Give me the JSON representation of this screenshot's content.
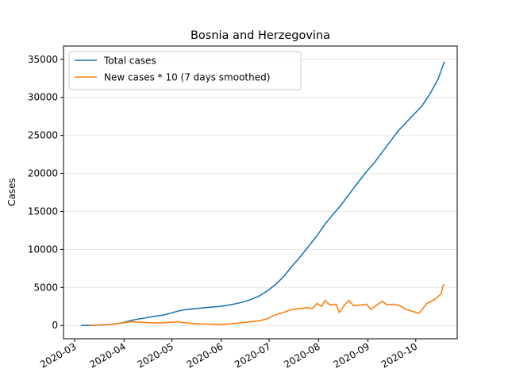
{
  "chart_data": {
    "type": "line",
    "title": "Bosnia and Herzegovina",
    "xlabel": "",
    "ylabel": "Cases",
    "xlim": [
      "2020-02-23",
      "2020-10-27"
    ],
    "ylim": [
      -1750,
      36750
    ],
    "x_ticks": [
      "2020-03",
      "2020-04",
      "2020-05",
      "2020-06",
      "2020-07",
      "2020-08",
      "2020-09",
      "2020-10"
    ],
    "x_tick_dates": [
      "2020-03-01",
      "2020-04-01",
      "2020-05-01",
      "2020-06-01",
      "2020-07-01",
      "2020-08-01",
      "2020-09-01",
      "2020-10-01"
    ],
    "y_ticks": [
      0,
      5000,
      10000,
      15000,
      20000,
      25000,
      30000,
      35000
    ],
    "grid": "horizontal",
    "legend_position": "top-left",
    "series": [
      {
        "name": "Total cases",
        "color": "#1f77b4",
        "points": [
          [
            "2020-03-05",
            0
          ],
          [
            "2020-03-10",
            5
          ],
          [
            "2020-03-15",
            30
          ],
          [
            "2020-03-20",
            90
          ],
          [
            "2020-03-25",
            170
          ],
          [
            "2020-03-31",
            360
          ],
          [
            "2020-04-05",
            640
          ],
          [
            "2020-04-10",
            850
          ],
          [
            "2020-04-15",
            1010
          ],
          [
            "2020-04-20",
            1200
          ],
          [
            "2020-04-25",
            1350
          ],
          [
            "2020-04-30",
            1600
          ],
          [
            "2020-05-05",
            1900
          ],
          [
            "2020-05-10",
            2100
          ],
          [
            "2020-05-15",
            2200
          ],
          [
            "2020-05-20",
            2300
          ],
          [
            "2020-05-25",
            2400
          ],
          [
            "2020-05-31",
            2510
          ],
          [
            "2020-06-05",
            2650
          ],
          [
            "2020-06-10",
            2850
          ],
          [
            "2020-06-15",
            3100
          ],
          [
            "2020-06-20",
            3450
          ],
          [
            "2020-06-25",
            3900
          ],
          [
            "2020-06-30",
            4550
          ],
          [
            "2020-07-05",
            5400
          ],
          [
            "2020-07-10",
            6400
          ],
          [
            "2020-07-15",
            7700
          ],
          [
            "2020-07-20",
            8900
          ],
          [
            "2020-07-25",
            10200
          ],
          [
            "2020-07-31",
            11800
          ],
          [
            "2020-08-05",
            13300
          ],
          [
            "2020-08-10",
            14600
          ],
          [
            "2020-08-15",
            15800
          ],
          [
            "2020-08-20",
            17200
          ],
          [
            "2020-08-25",
            18600
          ],
          [
            "2020-08-31",
            20200
          ],
          [
            "2020-09-05",
            21400
          ],
          [
            "2020-09-10",
            22800
          ],
          [
            "2020-09-15",
            24200
          ],
          [
            "2020-09-20",
            25600
          ],
          [
            "2020-09-25",
            26700
          ],
          [
            "2020-09-30",
            27800
          ],
          [
            "2020-10-05",
            28900
          ],
          [
            "2020-10-10",
            30500
          ],
          [
            "2020-10-15",
            32400
          ],
          [
            "2020-10-19",
            34700
          ]
        ]
      },
      {
        "name": "New cases * 10 (7 days smoothed)",
        "color": "#ff7f0e",
        "points": [
          [
            "2020-03-11",
            0
          ],
          [
            "2020-03-15",
            40
          ],
          [
            "2020-03-20",
            100
          ],
          [
            "2020-03-25",
            180
          ],
          [
            "2020-03-31",
            330
          ],
          [
            "2020-04-05",
            480
          ],
          [
            "2020-04-10",
            430
          ],
          [
            "2020-04-15",
            380
          ],
          [
            "2020-04-20",
            350
          ],
          [
            "2020-04-25",
            330
          ],
          [
            "2020-04-30",
            420
          ],
          [
            "2020-05-05",
            480
          ],
          [
            "2020-05-10",
            330
          ],
          [
            "2020-05-15",
            250
          ],
          [
            "2020-05-20",
            200
          ],
          [
            "2020-05-25",
            180
          ],
          [
            "2020-05-31",
            150
          ],
          [
            "2020-06-05",
            190
          ],
          [
            "2020-06-10",
            260
          ],
          [
            "2020-06-15",
            400
          ],
          [
            "2020-06-20",
            500
          ],
          [
            "2020-06-25",
            620
          ],
          [
            "2020-06-30",
            900
          ],
          [
            "2020-07-05",
            1400
          ],
          [
            "2020-07-10",
            1700
          ],
          [
            "2020-07-15",
            2100
          ],
          [
            "2020-07-20",
            2200
          ],
          [
            "2020-07-25",
            2350
          ],
          [
            "2020-07-28",
            2200
          ],
          [
            "2020-07-31",
            2900
          ],
          [
            "2020-08-03",
            2500
          ],
          [
            "2020-08-05",
            3300
          ],
          [
            "2020-08-08",
            2700
          ],
          [
            "2020-08-12",
            2800
          ],
          [
            "2020-08-14",
            1700
          ],
          [
            "2020-08-17",
            2600
          ],
          [
            "2020-08-20",
            3300
          ],
          [
            "2020-08-23",
            2600
          ],
          [
            "2020-08-28",
            2700
          ],
          [
            "2020-08-31",
            2800
          ],
          [
            "2020-09-03",
            2100
          ],
          [
            "2020-09-06",
            2600
          ],
          [
            "2020-09-10",
            3200
          ],
          [
            "2020-09-13",
            2700
          ],
          [
            "2020-09-17",
            2800
          ],
          [
            "2020-09-21",
            2600
          ],
          [
            "2020-09-25",
            2100
          ],
          [
            "2020-09-30",
            1800
          ],
          [
            "2020-10-03",
            1600
          ],
          [
            "2020-10-05",
            2100
          ],
          [
            "2020-10-08",
            2900
          ],
          [
            "2020-10-11",
            3200
          ],
          [
            "2020-10-14",
            3600
          ],
          [
            "2020-10-17",
            4200
          ],
          [
            "2020-10-18",
            5200
          ],
          [
            "2020-10-19",
            5400
          ]
        ]
      }
    ]
  }
}
